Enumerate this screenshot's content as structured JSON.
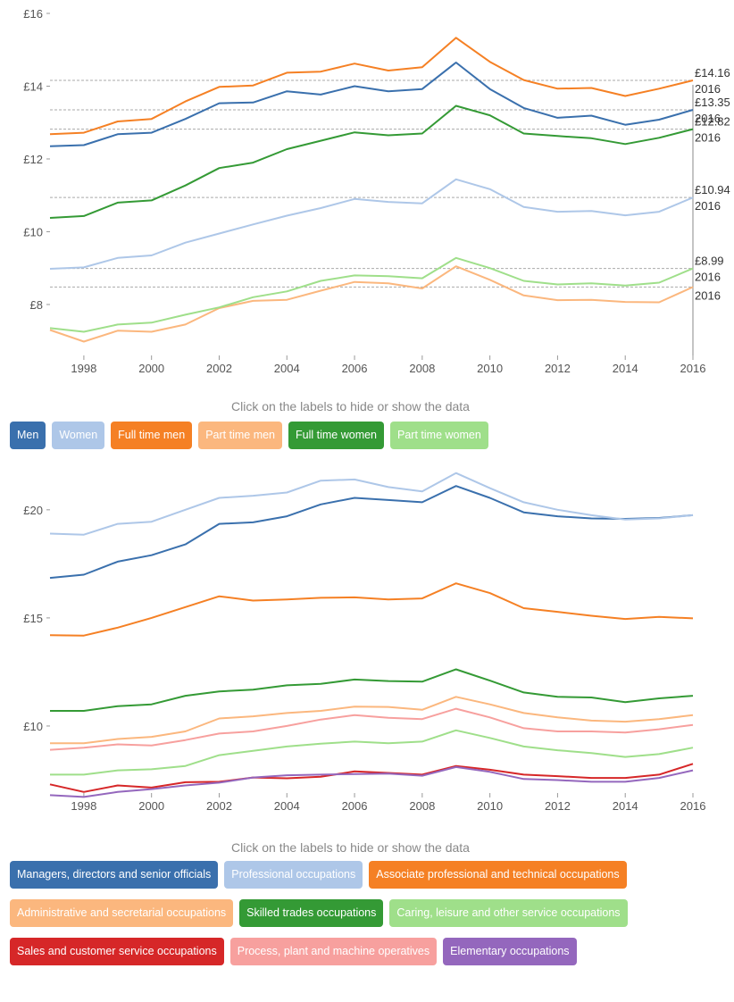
{
  "hint_text": "Click on the labels to hide or show the data",
  "chart_data": [
    {
      "type": "line",
      "x": [
        1997,
        1998,
        1999,
        2000,
        2001,
        2002,
        2003,
        2004,
        2005,
        2006,
        2007,
        2008,
        2009,
        2010,
        2011,
        2012,
        2013,
        2014,
        2015,
        2016
      ],
      "x_ticks": [
        "1998",
        "2000",
        "2002",
        "2004",
        "2006",
        "2008",
        "2010",
        "2012",
        "2014",
        "2016"
      ],
      "y_ticks": [
        {
          "value": 8,
          "label": "£8"
        },
        {
          "value": 10,
          "label": "£10"
        },
        {
          "value": 12,
          "label": "£12"
        },
        {
          "value": 14,
          "label": "£14"
        },
        {
          "value": 16,
          "label": "£16"
        }
      ],
      "ylim": [
        6.6,
        16
      ],
      "series": [
        {
          "name": "Men",
          "color": "#3a70ad",
          "values": [
            12.35,
            12.38,
            12.68,
            12.72,
            13.1,
            13.53,
            13.55,
            13.86,
            13.77,
            14.0,
            13.86,
            13.92,
            14.65,
            13.92,
            13.4,
            13.13,
            13.19,
            12.94,
            13.08,
            13.35
          ],
          "end_label": "£13.35",
          "end_year": "2016"
        },
        {
          "name": "Women",
          "color": "#aec7e8",
          "values": [
            8.98,
            9.02,
            9.28,
            9.35,
            9.7,
            9.95,
            10.2,
            10.44,
            10.65,
            10.9,
            10.82,
            10.78,
            11.44,
            11.17,
            10.68,
            10.55,
            10.57,
            10.45,
            10.55,
            10.94
          ],
          "end_label": "£10.94",
          "end_year": "2016"
        },
        {
          "name": "Full time men",
          "color": "#f58024",
          "values": [
            12.68,
            12.72,
            13.03,
            13.1,
            13.58,
            13.98,
            14.02,
            14.37,
            14.4,
            14.62,
            14.43,
            14.52,
            15.33,
            14.67,
            14.17,
            13.93,
            13.95,
            13.73,
            13.93,
            14.16
          ],
          "end_label": "£14.16",
          "end_year": "2016"
        },
        {
          "name": "Part time men",
          "color": "#fbb77e",
          "values": [
            7.3,
            6.98,
            7.28,
            7.25,
            7.45,
            7.9,
            8.1,
            8.13,
            8.38,
            8.62,
            8.58,
            8.44,
            9.05,
            8.68,
            8.25,
            8.12,
            8.13,
            8.07,
            8.06,
            8.48
          ],
          "end_label": "",
          "end_year": "2016"
        },
        {
          "name": "Full time women",
          "color": "#349a35",
          "values": [
            10.38,
            10.43,
            10.8,
            10.86,
            11.27,
            11.75,
            11.9,
            12.27,
            12.5,
            12.73,
            12.65,
            12.7,
            13.46,
            13.2,
            12.7,
            12.63,
            12.57,
            12.41,
            12.58,
            12.82
          ],
          "end_label": "£12.82",
          "end_year": "2016"
        },
        {
          "name": "Part time women",
          "color": "#9fdf8a",
          "values": [
            7.35,
            7.25,
            7.45,
            7.5,
            7.72,
            7.92,
            8.2,
            8.36,
            8.65,
            8.8,
            8.78,
            8.72,
            9.28,
            9.0,
            8.65,
            8.55,
            8.58,
            8.52,
            8.6,
            8.99
          ],
          "end_label": "£8.99",
          "end_year": "2016"
        }
      ]
    },
    {
      "type": "line",
      "x": [
        1997,
        1998,
        1999,
        2000,
        2001,
        2002,
        2003,
        2004,
        2005,
        2006,
        2007,
        2008,
        2009,
        2010,
        2011,
        2012,
        2013,
        2014,
        2015,
        2016
      ],
      "x_ticks": [
        "1998",
        "2000",
        "2002",
        "2004",
        "2006",
        "2008",
        "2010",
        "2012",
        "2014",
        "2016"
      ],
      "y_ticks": [
        {
          "value": 10,
          "label": "£10"
        },
        {
          "value": 15,
          "label": "£15"
        },
        {
          "value": 20,
          "label": "£20"
        }
      ],
      "ylim": [
        6.9,
        22.1
      ],
      "series": [
        {
          "name": "Managers, directors and senior officials",
          "color": "#3a70ad",
          "values": [
            16.85,
            17.0,
            17.6,
            17.9,
            18.4,
            19.35,
            19.42,
            19.7,
            20.25,
            20.55,
            20.45,
            20.35,
            21.1,
            20.55,
            19.88,
            19.7,
            19.6,
            19.58,
            19.62,
            19.75
          ]
        },
        {
          "name": "Professional occupations",
          "color": "#aec7e8",
          "values": [
            18.9,
            18.85,
            19.35,
            19.45,
            20.0,
            20.55,
            20.65,
            20.8,
            21.35,
            21.4,
            21.05,
            20.85,
            21.7,
            21.0,
            20.35,
            20.0,
            19.75,
            19.55,
            19.6,
            19.75
          ]
        },
        {
          "name": "Associate professional and technical occupations",
          "color": "#f58024",
          "values": [
            14.2,
            14.18,
            14.55,
            15.0,
            15.5,
            16.0,
            15.8,
            15.85,
            15.93,
            15.95,
            15.85,
            15.9,
            16.6,
            16.15,
            15.45,
            15.28,
            15.1,
            14.95,
            15.05,
            14.98
          ]
        },
        {
          "name": "Administrative and secretarial occupations",
          "color": "#fbb77e",
          "values": [
            9.2,
            9.2,
            9.4,
            9.5,
            9.75,
            10.35,
            10.45,
            10.6,
            10.7,
            10.9,
            10.88,
            10.75,
            11.35,
            11.0,
            10.6,
            10.4,
            10.25,
            10.2,
            10.32,
            10.5
          ]
        },
        {
          "name": "Skilled trades occupations",
          "color": "#349a35",
          "values": [
            10.7,
            10.7,
            10.92,
            11.0,
            11.4,
            11.6,
            11.68,
            11.88,
            11.95,
            12.15,
            12.08,
            12.05,
            12.62,
            12.1,
            11.55,
            11.35,
            11.32,
            11.1,
            11.28,
            11.4
          ]
        },
        {
          "name": "Caring, leisure and other service occupations",
          "color": "#9fdf8a",
          "values": [
            7.75,
            7.75,
            7.95,
            8.0,
            8.15,
            8.65,
            8.85,
            9.05,
            9.18,
            9.28,
            9.2,
            9.28,
            9.8,
            9.45,
            9.05,
            8.88,
            8.75,
            8.57,
            8.7,
            9.0
          ]
        },
        {
          "name": "Sales and customer service occupations",
          "color": "#d62728",
          "values": [
            7.3,
            6.95,
            7.25,
            7.15,
            7.4,
            7.42,
            7.62,
            7.58,
            7.65,
            7.9,
            7.83,
            7.75,
            8.15,
            7.98,
            7.75,
            7.68,
            7.6,
            7.6,
            7.75,
            8.25
          ]
        },
        {
          "name": "Process, plant and machine operatives",
          "color": "#f7a09e",
          "values": [
            8.9,
            9.0,
            9.15,
            9.1,
            9.35,
            9.65,
            9.75,
            10.0,
            10.3,
            10.5,
            10.38,
            10.32,
            10.8,
            10.4,
            9.9,
            9.75,
            9.75,
            9.7,
            9.85,
            10.05
          ]
        },
        {
          "name": "Elementary occupations",
          "color": "#9467bd",
          "values": [
            6.8,
            6.72,
            6.95,
            7.08,
            7.25,
            7.38,
            7.62,
            7.72,
            7.75,
            7.78,
            7.8,
            7.7,
            8.1,
            7.88,
            7.55,
            7.5,
            7.42,
            7.42,
            7.6,
            7.95
          ]
        }
      ]
    }
  ]
}
